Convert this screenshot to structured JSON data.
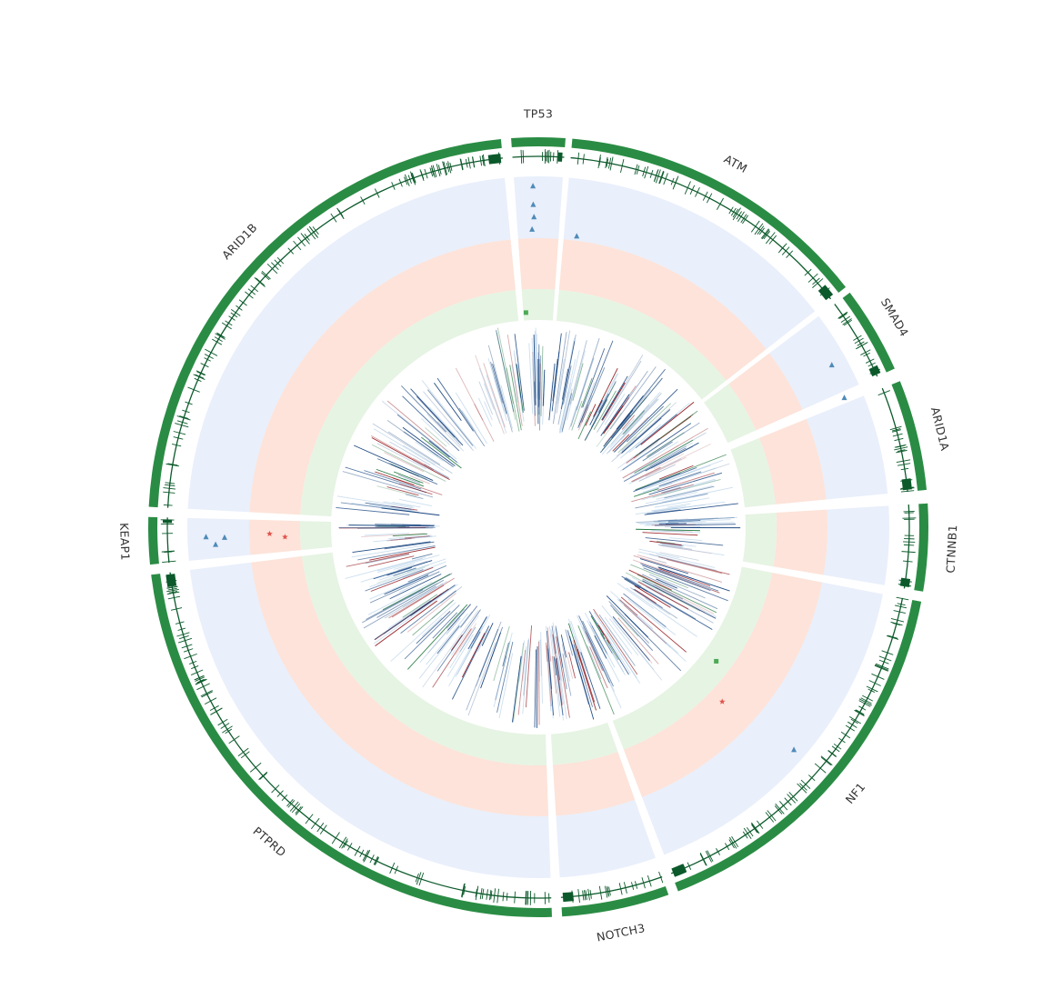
{
  "genes": [
    {
      "name": "TP53",
      "start_deg": -4.0,
      "end_deg": 4.0,
      "weight": 0.45
    },
    {
      "name": "ATM",
      "start_deg": 5.0,
      "end_deg": 52.0,
      "weight": 0.55
    },
    {
      "name": "SMAD4",
      "start_deg": 53.0,
      "end_deg": 66.0,
      "weight": 0.5
    },
    {
      "name": "ARID1A",
      "start_deg": 68.0,
      "end_deg": 84.5,
      "weight": 0.45
    },
    {
      "name": "CTNNB1",
      "start_deg": 86.5,
      "end_deg": 99.5,
      "weight": 0.6
    },
    {
      "name": "NF1",
      "start_deg": 101.0,
      "end_deg": 159.0,
      "weight": 0.5
    },
    {
      "name": "NOTCH3",
      "start_deg": 160.5,
      "end_deg": 176.5,
      "weight": 0.65
    },
    {
      "name": "PTPRD",
      "start_deg": 178.0,
      "end_deg": 263.0,
      "weight": 0.4
    },
    {
      "name": "KEAP1",
      "start_deg": 264.5,
      "end_deg": 271.5,
      "weight": 0.5
    },
    {
      "name": "ARID1B",
      "start_deg": 273.0,
      "end_deg": 354.5,
      "weight": 0.35
    }
  ],
  "tracks": {
    "blue_band_color": "#e9effb",
    "red_band_color": "#fde3d9",
    "green_band_color": "#e6f4e3",
    "ideogram_color": "#2a8c44",
    "ideogram_dark_color": "#0c5a2b",
    "heatmap_blue": "#0d3c7a",
    "heatmap_red": "#8e0d12",
    "heatmap_green": "#0c6b2c"
  },
  "markers": [
    {
      "type": "triangle",
      "track": "blue",
      "deg": -1.2,
      "r_frac": 0.15,
      "color": "#4e8ab8"
    },
    {
      "type": "triangle",
      "track": "blue",
      "deg": -0.8,
      "r_frac": 0.35,
      "color": "#4e8ab8"
    },
    {
      "type": "triangle",
      "track": "blue",
      "deg": -0.9,
      "r_frac": 0.55,
      "color": "#4e8ab8"
    },
    {
      "type": "triangle",
      "track": "blue",
      "deg": -0.9,
      "r_frac": 0.85,
      "color": "#4e8ab8"
    },
    {
      "type": "triangle",
      "track": "blue",
      "deg": 7.5,
      "r_frac": 0.08,
      "color": "#4e8ab8"
    },
    {
      "type": "triangle",
      "track": "blue",
      "deg": 61.0,
      "r_frac": 0.75,
      "color": "#4e8ab8"
    },
    {
      "type": "triangle",
      "track": "blue",
      "deg": 67.0,
      "r_frac": 0.7,
      "color": "#4e8ab8"
    },
    {
      "type": "square",
      "track": "green",
      "deg": -3.3,
      "r_frac": 0.25,
      "color": "#4caa55"
    },
    {
      "type": "triangle",
      "track": "blue",
      "deg": 267.0,
      "r_frac": 0.55,
      "color": "#4e8ab8"
    },
    {
      "type": "triangle",
      "track": "blue",
      "deg": 268.2,
      "r_frac": 0.4,
      "color": "#4e8ab8"
    },
    {
      "type": "triangle",
      "track": "blue",
      "deg": 268.4,
      "r_frac": 0.7,
      "color": "#4e8ab8"
    },
    {
      "type": "star",
      "track": "red",
      "deg": 267.8,
      "r_frac": 0.3,
      "color": "#e0544d"
    },
    {
      "type": "star",
      "track": "red",
      "deg": 268.6,
      "r_frac": 0.6,
      "color": "#e0544d"
    },
    {
      "type": "triangle",
      "track": "blue",
      "deg": 131.0,
      "r_frac": 0.8,
      "color": "#4e8ab8"
    },
    {
      "type": "star",
      "track": "red",
      "deg": 133.5,
      "r_frac": 0.3,
      "color": "#e0544d"
    },
    {
      "type": "square",
      "track": "green",
      "deg": 127.0,
      "r_frac": 0.5,
      "color": "#4caa55"
    }
  ]
}
